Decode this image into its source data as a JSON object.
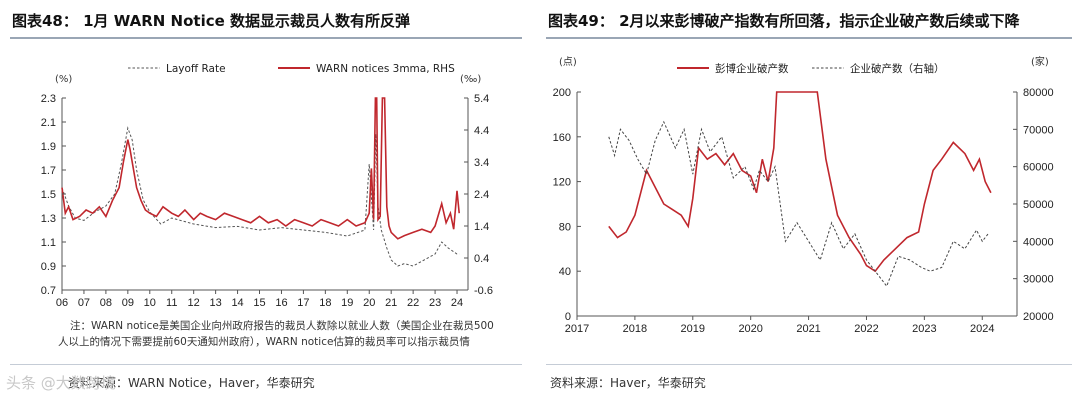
{
  "left": {
    "title": "图表48：  1月 WARN Notice 数据显示裁员人数有所反弹",
    "note_lines": [
      "注：WARN notice是美国企业向州政府报告的裁员人数除以就业人数（美国企业在裁员500",
      "人以上的情况下需要提前60天通知州政府），WARN notice估算的裁员率可以指示裁员情"
    ],
    "source": "资料来源：WARN Notice，Haver，华泰研究"
  },
  "right": {
    "title": "图表49：  2月以来彭博破产指数有所回落，指示企业破产数后续或下降",
    "source": "资料来源：Haver，华泰研究"
  },
  "watermark": "头条 @大数跨境",
  "chart_data": [
    {
      "type": "line",
      "legend_position": "top",
      "left_unit": "(%)",
      "right_unit": "(‰)",
      "ylim": [
        0.7,
        2.3
      ],
      "y_ticks": [
        "2.3",
        "2.1",
        "1.9",
        "1.7",
        "1.5",
        "1.3",
        "1.1",
        "0.9",
        "0.7"
      ],
      "y2lim": [
        -0.6,
        5.4
      ],
      "y2_ticks": [
        "5.4",
        "4.4",
        "3.4",
        "2.4",
        "1.4",
        "0.4",
        "-0.6"
      ],
      "xlim": [
        2006,
        2024.5
      ],
      "x_ticks": [
        "06",
        "07",
        "08",
        "09",
        "10",
        "11",
        "12",
        "13",
        "14",
        "15",
        "16",
        "17",
        "18",
        "19",
        "20",
        "21",
        "22",
        "23",
        "24"
      ],
      "series": [
        {
          "name": "Layoff Rate",
          "axis": "left",
          "color": "#555555",
          "style": "dashed",
          "x": [
            2006.0,
            2006.3,
            2006.6,
            2007.0,
            2007.5,
            2008.0,
            2008.4,
            2008.7,
            2009.0,
            2009.2,
            2009.4,
            2009.7,
            2010.0,
            2010.5,
            2011.0,
            2012.0,
            2013.0,
            2014.0,
            2015.0,
            2016.0,
            2017.0,
            2018.0,
            2019.0,
            2019.8,
            2020.0,
            2020.2,
            2020.3,
            2020.4,
            2020.55,
            2020.8,
            2021.0,
            2021.3,
            2021.6,
            2022.0,
            2022.5,
            2023.0,
            2023.3,
            2023.6,
            2024.0,
            2024.1
          ],
          "values": [
            1.55,
            1.4,
            1.3,
            1.28,
            1.35,
            1.4,
            1.5,
            1.75,
            2.05,
            1.95,
            1.7,
            1.45,
            1.35,
            1.25,
            1.3,
            1.25,
            1.22,
            1.23,
            1.2,
            1.22,
            1.2,
            1.18,
            1.15,
            1.2,
            1.75,
            1.2,
            2.0,
            1.4,
            1.2,
            1.05,
            0.95,
            0.9,
            0.92,
            0.9,
            0.95,
            1.0,
            1.1,
            1.05,
            1.0,
            1.0
          ]
        },
        {
          "name": "WARN notices 3mma, RHS",
          "axis": "right",
          "color": "#c0272d",
          "style": "solid",
          "x": [
            2006.0,
            2006.15,
            2006.3,
            2006.5,
            2006.8,
            2007.1,
            2007.4,
            2007.7,
            2008.0,
            2008.3,
            2008.6,
            2008.8,
            2009.0,
            2009.1,
            2009.25,
            2009.4,
            2009.6,
            2009.8,
            2010.0,
            2010.3,
            2010.6,
            2011.0,
            2011.3,
            2011.6,
            2012.0,
            2012.3,
            2012.6,
            2013.0,
            2013.4,
            2013.8,
            2014.2,
            2014.6,
            2015.0,
            2015.4,
            2015.8,
            2016.2,
            2016.6,
            2017.0,
            2017.4,
            2017.8,
            2018.2,
            2018.6,
            2019.0,
            2019.4,
            2019.8,
            2020.0,
            2020.1,
            2020.2,
            2020.28,
            2020.34,
            2020.4,
            2020.5,
            2020.6,
            2020.7,
            2020.8,
            2020.9,
            2021.0,
            2021.3,
            2021.6,
            2022.0,
            2022.4,
            2022.8,
            2023.0,
            2023.3,
            2023.5,
            2023.7,
            2023.85,
            2024.0,
            2024.1
          ],
          "values": [
            2.6,
            1.8,
            2.0,
            1.6,
            1.7,
            1.9,
            1.8,
            2.0,
            1.7,
            2.2,
            2.6,
            3.4,
            4.1,
            3.8,
            3.2,
            2.6,
            2.2,
            1.9,
            1.8,
            1.7,
            2.0,
            1.8,
            1.7,
            1.9,
            1.6,
            1.8,
            1.7,
            1.6,
            1.8,
            1.7,
            1.6,
            1.5,
            1.7,
            1.5,
            1.6,
            1.4,
            1.6,
            1.5,
            1.4,
            1.6,
            1.5,
            1.4,
            1.6,
            1.4,
            1.5,
            1.8,
            3.2,
            1.6,
            5.4,
            5.4,
            1.6,
            1.7,
            5.4,
            5.4,
            2.0,
            1.4,
            1.2,
            1.0,
            1.1,
            1.2,
            1.3,
            1.2,
            1.4,
            2.1,
            1.5,
            1.8,
            1.3,
            2.5,
            1.8
          ]
        }
      ]
    },
    {
      "type": "line",
      "legend_position": "top",
      "left_unit": "(点)",
      "right_unit": "(家)",
      "ylim": [
        0,
        200
      ],
      "y_ticks": [
        "200",
        "160",
        "120",
        "80",
        "40",
        "0"
      ],
      "y2lim": [
        20000,
        80000
      ],
      "y2_ticks": [
        "80000",
        "70000",
        "60000",
        "50000",
        "40000",
        "30000",
        "20000"
      ],
      "xlim": [
        2017,
        2024.6
      ],
      "x_ticks": [
        "2017",
        "2018",
        "2019",
        "2020",
        "2021",
        "2022",
        "2023",
        "2024"
      ],
      "series": [
        {
          "name": "彭博企业破产数",
          "axis": "left",
          "color": "#c0272d",
          "style": "solid",
          "x": [
            2017.55,
            2017.7,
            2017.85,
            2018.0,
            2018.1,
            2018.2,
            2018.35,
            2018.5,
            2018.65,
            2018.8,
            2018.92,
            2019.0,
            2019.1,
            2019.25,
            2019.4,
            2019.55,
            2019.7,
            2019.85,
            2020.0,
            2020.1,
            2020.2,
            2020.3,
            2020.4,
            2020.45,
            2021.15,
            2021.3,
            2021.5,
            2021.7,
            2021.9,
            2022.0,
            2022.15,
            2022.3,
            2022.5,
            2022.7,
            2022.9,
            2023.0,
            2023.15,
            2023.3,
            2023.5,
            2023.7,
            2023.85,
            2023.95,
            2024.05,
            2024.15
          ],
          "values": [
            80,
            70,
            75,
            90,
            110,
            130,
            115,
            100,
            95,
            90,
            80,
            105,
            150,
            140,
            145,
            135,
            145,
            130,
            125,
            110,
            140,
            120,
            150,
            200,
            200,
            140,
            90,
            70,
            55,
            45,
            40,
            50,
            60,
            70,
            75,
            100,
            130,
            140,
            155,
            145,
            130,
            140,
            120,
            110
          ]
        },
        {
          "name": "企业破产数（右轴）",
          "axis": "right",
          "color": "#444444",
          "style": "dashed",
          "x": [
            2017.55,
            2017.65,
            2017.75,
            2017.9,
            2018.05,
            2018.2,
            2018.35,
            2018.5,
            2018.7,
            2018.85,
            2019.0,
            2019.15,
            2019.3,
            2019.5,
            2019.7,
            2019.9,
            2020.05,
            2020.15,
            2020.3,
            2020.42,
            2020.6,
            2020.8,
            2021.0,
            2021.2,
            2021.4,
            2021.6,
            2021.8,
            2022.0,
            2022.15,
            2022.35,
            2022.55,
            2022.75,
            2022.95,
            2023.1,
            2023.3,
            2023.5,
            2023.7,
            2023.9,
            2024.0,
            2024.1
          ],
          "values": [
            68000,
            63000,
            70000,
            67000,
            62000,
            58000,
            67000,
            72000,
            65000,
            70000,
            58000,
            70000,
            64000,
            68000,
            57000,
            60000,
            54000,
            59000,
            56000,
            60000,
            40000,
            45000,
            40000,
            35000,
            45000,
            38000,
            42000,
            35000,
            32000,
            28000,
            36000,
            35000,
            33000,
            32000,
            33000,
            40000,
            38000,
            43000,
            40000,
            42000
          ]
        }
      ]
    }
  ]
}
